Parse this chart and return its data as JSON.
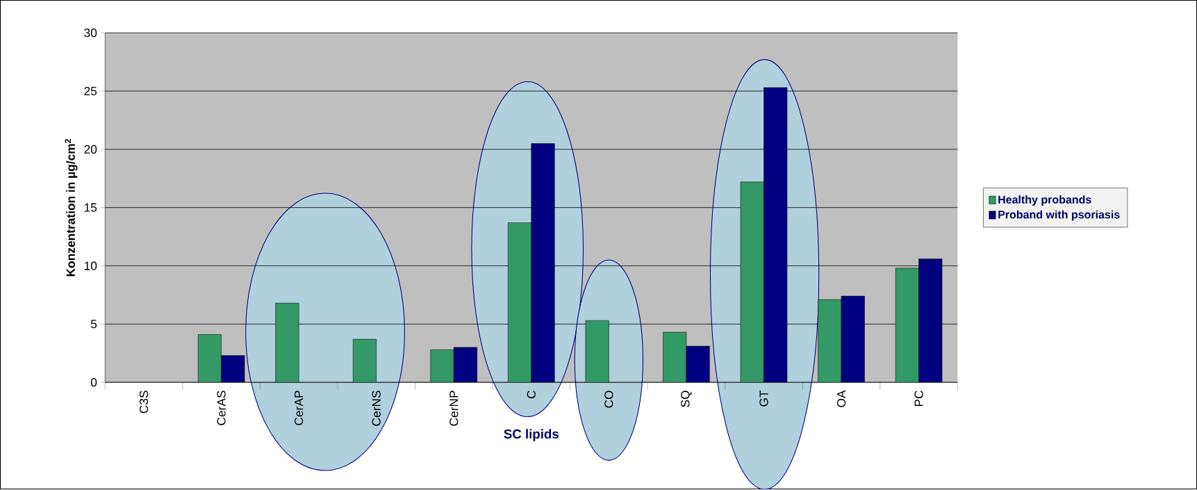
{
  "chart_data": {
    "type": "bar",
    "xlabel": "SC lipids",
    "ylabel": "Konzentration in µg/cm$^{2}$",
    "categories": [
      "C3S",
      "CerAS",
      "CerAP",
      "CerNS",
      "CerNP",
      "C",
      "CO",
      "SQ",
      "GT",
      "OA",
      "PC"
    ],
    "series": [
      {
        "name": "Healthy probands",
        "color": "#339966",
        "values": [
          null,
          4.1,
          6.8,
          3.7,
          2.8,
          13.7,
          5.3,
          4.3,
          17.2,
          7.1,
          9.8
        ]
      },
      {
        "name": "Proband with psoriasis",
        "color": "#000080",
        "values": [
          null,
          2.3,
          null,
          null,
          3.0,
          20.5,
          null,
          3.1,
          25.3,
          7.4,
          10.6
        ]
      }
    ],
    "ylim": [
      0,
      30
    ],
    "yticks": [
      0,
      5,
      10,
      15,
      20,
      25,
      30
    ],
    "grid": "y",
    "legend": "right"
  }
}
